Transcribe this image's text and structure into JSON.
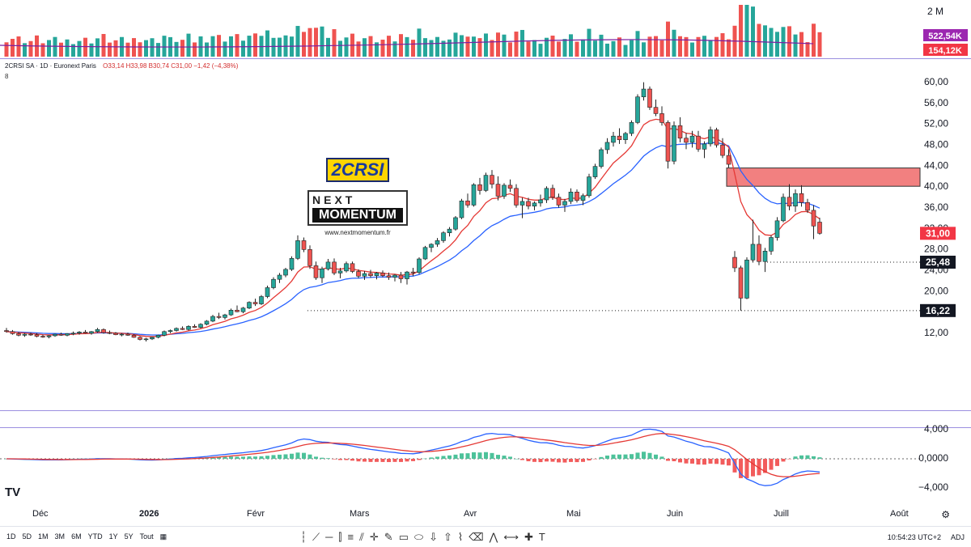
{
  "header": {
    "symbol": "2CRSI SA · 1D · Euronext Paris",
    "ohlc": "O33,14 H33,98 B30,74 C31,00 −1,42 (−4,38%)",
    "indicator_count": "8"
  },
  "logo": {
    "brand": "2CRSI",
    "next": "NEXT",
    "momentum": "MOMENTUM",
    "url": "www.nextmomentum.fr"
  },
  "colors": {
    "up": "#26a69a",
    "down": "#ef5350",
    "ma_fast": "#e53935",
    "ma_slow": "#2962ff",
    "zone": "#f28080",
    "vol_ma": "#7b1fa2"
  },
  "volume_labels": {
    "max": "2 M",
    "ma": "522,54K",
    "last": "154,12K"
  },
  "price_tags": {
    "last": "31,00",
    "support1": "25,48",
    "support2": "16,22"
  },
  "macd_labels": [
    "4,000",
    "0,0000",
    "−4,000"
  ],
  "x_axis": [
    "Déc",
    "2026",
    "Févr",
    "Mars",
    "Avr",
    "Mai",
    "Juin",
    "Juill",
    "Août"
  ],
  "toolbar": {
    "timeframes": [
      "1D",
      "5D",
      "1M",
      "3M",
      "6M",
      "YTD",
      "1Y",
      "5Y",
      "Tout"
    ],
    "time": "10:54:23 UTC+2",
    "adj": "ADJ"
  },
  "chart_data": {
    "type": "candlestick",
    "series_note": "Daily candles (approximate OHLC)",
    "y_ticks": [
      12,
      16,
      20,
      24,
      28,
      32,
      36,
      40,
      44,
      48,
      52,
      56,
      60
    ],
    "ylim": [
      10,
      61
    ],
    "resistance_zone": [
      40.0,
      43.5
    ],
    "support_levels": [
      25.48,
      16.22
    ],
    "candles": [
      [
        12.4,
        12.9,
        12.0,
        12.2
      ],
      [
        12.2,
        12.5,
        11.6,
        11.8
      ],
      [
        11.8,
        12.1,
        11.3,
        11.5
      ],
      [
        11.5,
        11.9,
        11.2,
        11.7
      ],
      [
        11.7,
        12.0,
        11.4,
        11.6
      ],
      [
        11.6,
        11.9,
        11.1,
        11.3
      ],
      [
        11.3,
        11.6,
        11.0,
        11.2
      ],
      [
        11.2,
        11.5,
        10.9,
        11.4
      ],
      [
        11.4,
        11.8,
        11.2,
        11.7
      ],
      [
        11.7,
        12.0,
        11.4,
        11.5
      ],
      [
        11.5,
        11.9,
        11.3,
        11.8
      ],
      [
        11.8,
        12.2,
        11.5,
        11.9
      ],
      [
        11.9,
        12.3,
        11.6,
        12.1
      ],
      [
        12.1,
        12.5,
        11.8,
        11.9
      ],
      [
        11.9,
        12.3,
        11.6,
        12.2
      ],
      [
        12.2,
        12.9,
        12.0,
        12.6
      ],
      [
        12.6,
        12.8,
        11.8,
        12.0
      ],
      [
        12.0,
        12.4,
        11.7,
        11.9
      ],
      [
        11.9,
        12.1,
        11.5,
        11.6
      ],
      [
        11.6,
        11.9,
        11.3,
        11.7
      ],
      [
        11.7,
        12.0,
        11.4,
        11.5
      ],
      [
        11.5,
        11.7,
        11.0,
        11.1
      ],
      [
        11.1,
        11.3,
        10.5,
        10.7
      ],
      [
        10.7,
        11.0,
        10.3,
        10.8
      ],
      [
        10.8,
        11.2,
        10.6,
        11.1
      ],
      [
        11.1,
        11.6,
        10.9,
        11.5
      ],
      [
        11.5,
        12.4,
        11.3,
        12.2
      ],
      [
        12.2,
        12.6,
        11.9,
        12.4
      ],
      [
        12.4,
        13.0,
        12.2,
        12.8
      ],
      [
        12.8,
        13.2,
        12.5,
        12.6
      ],
      [
        12.6,
        13.4,
        12.4,
        13.2
      ],
      [
        13.2,
        13.6,
        12.9,
        13.0
      ],
      [
        13.0,
        13.8,
        12.8,
        13.6
      ],
      [
        13.6,
        14.4,
        13.4,
        14.2
      ],
      [
        14.2,
        15.4,
        14.0,
        15.1
      ],
      [
        15.1,
        15.8,
        14.6,
        14.9
      ],
      [
        14.9,
        15.6,
        14.5,
        15.4
      ],
      [
        15.4,
        16.6,
        15.2,
        16.3
      ],
      [
        16.3,
        17.2,
        15.9,
        16.0
      ],
      [
        16.0,
        16.9,
        15.7,
        16.7
      ],
      [
        16.7,
        18.0,
        16.5,
        17.8
      ],
      [
        17.8,
        18.5,
        17.1,
        17.5
      ],
      [
        17.5,
        19.2,
        17.3,
        18.9
      ],
      [
        18.9,
        21.0,
        18.6,
        20.6
      ],
      [
        20.6,
        22.6,
        20.3,
        22.2
      ],
      [
        22.2,
        23.4,
        21.5,
        23.0
      ],
      [
        23.0,
        24.4,
        22.6,
        24.1
      ],
      [
        24.1,
        26.6,
        23.8,
        26.2
      ],
      [
        26.2,
        30.6,
        25.9,
        29.6
      ],
      [
        29.6,
        30.2,
        27.4,
        27.9
      ],
      [
        27.9,
        28.7,
        24.2,
        24.8
      ],
      [
        24.8,
        25.6,
        22.1,
        22.5
      ],
      [
        22.5,
        24.6,
        21.5,
        24.2
      ],
      [
        24.2,
        26.1,
        23.9,
        25.5
      ],
      [
        25.5,
        26.2,
        23.0,
        23.4
      ],
      [
        23.4,
        24.4,
        22.4,
        23.8
      ],
      [
        23.8,
        25.6,
        23.5,
        25.2
      ],
      [
        25.2,
        25.6,
        23.4,
        23.7
      ],
      [
        23.7,
        24.1,
        22.4,
        22.8
      ],
      [
        22.8,
        23.8,
        22.1,
        23.3
      ],
      [
        23.3,
        24.0,
        22.5,
        22.9
      ],
      [
        22.9,
        23.6,
        22.2,
        23.4
      ],
      [
        23.4,
        23.9,
        22.6,
        22.9
      ],
      [
        22.9,
        23.5,
        22.1,
        22.6
      ],
      [
        22.6,
        23.2,
        21.8,
        23.0
      ],
      [
        23.0,
        23.6,
        21.5,
        22.3
      ],
      [
        22.3,
        23.8,
        21.2,
        23.6
      ],
      [
        23.6,
        24.4,
        22.8,
        23.5
      ],
      [
        23.5,
        26.4,
        23.2,
        26.1
      ],
      [
        26.1,
        28.6,
        25.9,
        28.3
      ],
      [
        28.3,
        29.1,
        27.4,
        28.9
      ],
      [
        28.9,
        30.1,
        28.4,
        29.6
      ],
      [
        29.6,
        31.4,
        29.2,
        31.1
      ],
      [
        31.1,
        32.2,
        30.4,
        31.8
      ],
      [
        31.8,
        34.3,
        31.5,
        34.0
      ],
      [
        34.0,
        37.6,
        33.7,
        37.2
      ],
      [
        37.2,
        38.6,
        35.9,
        36.4
      ],
      [
        36.4,
        40.6,
        36.1,
        40.3
      ],
      [
        40.3,
        41.6,
        38.4,
        39.2
      ],
      [
        39.2,
        42.6,
        38.9,
        42.1
      ],
      [
        42.1,
        43.1,
        39.6,
        40.4
      ],
      [
        40.4,
        41.9,
        37.3,
        38.1
      ],
      [
        38.1,
        40.6,
        37.6,
        40.2
      ],
      [
        40.2,
        41.3,
        38.9,
        39.6
      ],
      [
        39.6,
        40.4,
        35.9,
        36.4
      ],
      [
        36.4,
        37.8,
        33.9,
        37.1
      ],
      [
        37.1,
        37.8,
        35.6,
        36.2
      ],
      [
        36.2,
        37.1,
        35.4,
        36.8
      ],
      [
        36.8,
        38.4,
        36.1,
        37.4
      ],
      [
        37.4,
        40.0,
        36.8,
        39.6
      ],
      [
        39.6,
        40.3,
        37.4,
        37.9
      ],
      [
        37.9,
        38.6,
        35.9,
        36.4
      ],
      [
        36.4,
        37.6,
        35.1,
        37.1
      ],
      [
        37.1,
        39.6,
        36.6,
        38.9
      ],
      [
        38.9,
        39.4,
        36.9,
        37.3
      ],
      [
        37.3,
        38.6,
        36.4,
        38.2
      ],
      [
        38.2,
        42.4,
        37.8,
        41.8
      ],
      [
        41.8,
        44.3,
        41.4,
        43.8
      ],
      [
        43.8,
        47.4,
        43.4,
        47.0
      ],
      [
        47.0,
        49.2,
        46.2,
        48.4
      ],
      [
        48.4,
        50.4,
        47.6,
        49.6
      ],
      [
        49.6,
        51.1,
        48.1,
        48.9
      ],
      [
        48.9,
        50.4,
        48.1,
        50.1
      ],
      [
        50.1,
        52.6,
        49.6,
        52.2
      ],
      [
        52.2,
        57.6,
        51.9,
        57.1
      ],
      [
        57.1,
        59.9,
        56.4,
        58.6
      ],
      [
        58.6,
        59.1,
        54.6,
        55.1
      ],
      [
        55.1,
        56.6,
        53.4,
        53.9
      ],
      [
        53.9,
        55.3,
        51.6,
        52.2
      ],
      [
        52.2,
        52.6,
        43.4,
        44.8
      ],
      [
        44.8,
        52.4,
        44.2,
        51.6
      ],
      [
        51.6,
        53.2,
        48.4,
        49.2
      ],
      [
        49.2,
        50.2,
        47.1,
        48.4
      ],
      [
        48.4,
        50.6,
        47.4,
        49.6
      ],
      [
        49.6,
        50.6,
        46.6,
        47.1
      ],
      [
        47.1,
        48.6,
        45.4,
        48.1
      ],
      [
        48.1,
        51.4,
        47.6,
        50.8
      ],
      [
        50.8,
        51.2,
        47.4,
        47.9
      ],
      [
        47.9,
        49.2,
        45.4,
        45.9
      ],
      [
        45.9,
        47.1,
        43.6,
        44.2
      ],
      [
        26.4,
        27.6,
        23.6,
        24.4
      ],
      [
        24.4,
        24.8,
        16.22,
        18.6
      ],
      [
        18.6,
        26.4,
        18.4,
        25.9
      ],
      [
        25.9,
        33.6,
        25.4,
        28.9
      ],
      [
        28.9,
        30.6,
        24.9,
        25.6
      ],
      [
        25.6,
        28.2,
        23.6,
        27.6
      ],
      [
        27.6,
        30.6,
        26.9,
        30.2
      ],
      [
        30.2,
        34.1,
        29.6,
        33.4
      ],
      [
        33.4,
        38.6,
        33.1,
        37.9
      ],
      [
        37.9,
        40.4,
        35.4,
        36.2
      ],
      [
        36.2,
        39.4,
        35.1,
        38.6
      ],
      [
        38.6,
        40.2,
        36.1,
        36.9
      ],
      [
        36.9,
        37.6,
        34.9,
        35.4
      ],
      [
        35.4,
        36.4,
        29.9,
        32.4
      ],
      [
        33.14,
        33.98,
        30.74,
        31.0
      ]
    ]
  }
}
